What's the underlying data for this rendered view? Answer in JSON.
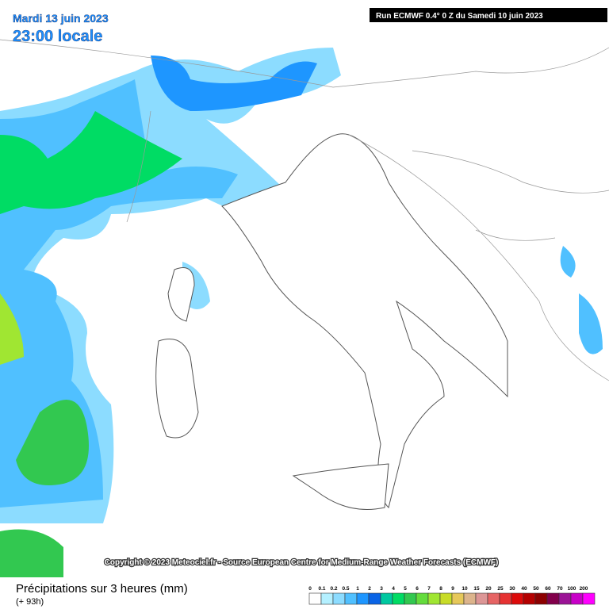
{
  "header": {
    "date": "Mardi 13 juin 2023",
    "time": "23:00 locale",
    "run": "Run ECMWF 0.4° 0 Z du Samedi 10 juin 2023"
  },
  "copyright": "Copyright © 2023 Meteociel.fr - Source European Centre for Medium-Range Weather Forecasts (ECMWF)",
  "footer": {
    "title": "Précipitations sur 3 heures (mm)",
    "lead": "(+ 93h)"
  },
  "legend": {
    "items": [
      {
        "label": "0",
        "color": "#ffffff"
      },
      {
        "label": "0.1",
        "color": "#b4f0ff"
      },
      {
        "label": "0.2",
        "color": "#8cdcff"
      },
      {
        "label": "0.5",
        "color": "#50c0ff"
      },
      {
        "label": "1",
        "color": "#1e96ff"
      },
      {
        "label": "2",
        "color": "#0a64e6"
      },
      {
        "label": "3",
        "color": "#00c8a0"
      },
      {
        "label": "4",
        "color": "#00dc64"
      },
      {
        "label": "5",
        "color": "#32c850"
      },
      {
        "label": "6",
        "color": "#64dc3c"
      },
      {
        "label": "7",
        "color": "#a0e632"
      },
      {
        "label": "8",
        "color": "#c8dc28"
      },
      {
        "label": "9",
        "color": "#e6c85a"
      },
      {
        "label": "10",
        "color": "#dcb48c"
      },
      {
        "label": "15",
        "color": "#dc9696"
      },
      {
        "label": "20",
        "color": "#e66464"
      },
      {
        "label": "25",
        "color": "#e63232"
      },
      {
        "label": "30",
        "color": "#dc0a0a"
      },
      {
        "label": "40",
        "color": "#b40000"
      },
      {
        "label": "50",
        "color": "#8c0000"
      },
      {
        "label": "60",
        "color": "#82004b"
      },
      {
        "label": "70",
        "color": "#9b1496"
      },
      {
        "label": "100",
        "color": "#c800c8"
      },
      {
        "label": "200",
        "color": "#ff00ff"
      }
    ]
  }
}
